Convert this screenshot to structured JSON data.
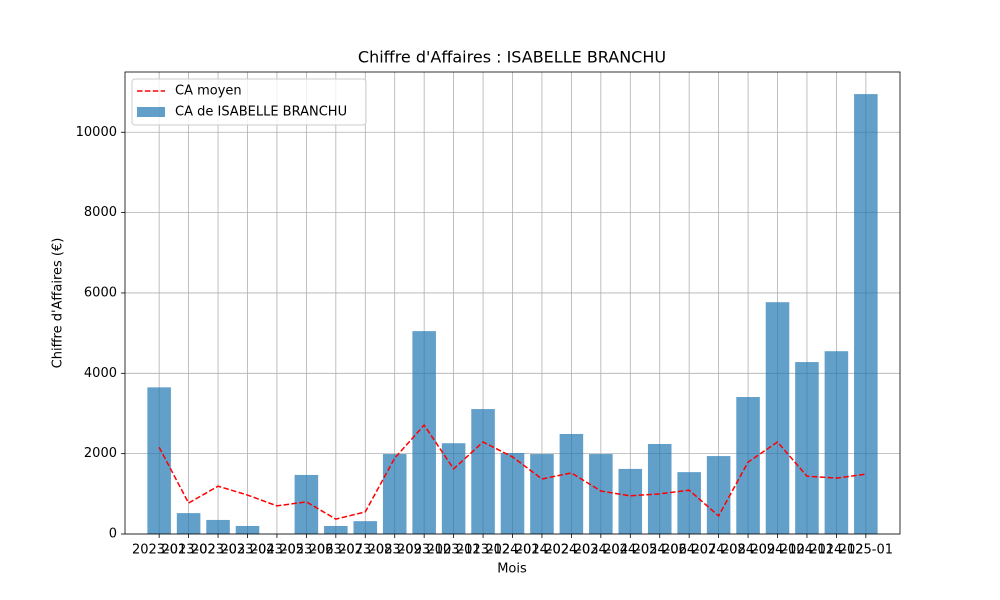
{
  "chart_data": {
    "type": "bar",
    "title": "Chiffre d'Affaires : ISABELLE BRANCHU",
    "xlabel": "Mois",
    "ylabel": "Chiffre d'Affaires (€)",
    "categories": [
      "2023-01",
      "2023-02",
      "2023-03",
      "2023-04",
      "2023-05",
      "2023-06",
      "2023-07",
      "2023-08",
      "2023-09",
      "2023-10",
      "2023-11",
      "2023-12",
      "2024-01",
      "2024-02",
      "2024-03",
      "2024-04",
      "2024-05",
      "2024-06",
      "2024-07",
      "2024-08",
      "2024-09",
      "2024-10",
      "2024-11",
      "2024-12",
      "2025-01"
    ],
    "series": [
      {
        "name": "CA moyen",
        "type": "line",
        "color": "#ff0000",
        "dashed": true,
        "values": [
          2160,
          770,
          1190,
          970,
          700,
          800,
          370,
          550,
          1890,
          2710,
          1620,
          2290,
          1920,
          1370,
          1520,
          1070,
          950,
          1000,
          1090,
          450,
          1790,
          2290,
          1440,
          1390,
          1490
        ]
      },
      {
        "name": "CA de ISABELLE BRANCHU",
        "type": "bar",
        "color": "#1f77b4",
        "opacity": 0.7,
        "values": [
          3650,
          520,
          350,
          200,
          0,
          1470,
          200,
          320,
          1990,
          5050,
          2260,
          3110,
          2015,
          1990,
          2490,
          1990,
          1620,
          2240,
          1540,
          1940,
          3410,
          5770,
          4280,
          4550,
          10950
        ]
      }
    ],
    "ylim": [
      0,
      11500
    ],
    "yticks": [
      0,
      2000,
      4000,
      6000,
      8000,
      10000
    ],
    "grid": true,
    "legend": "upper-left"
  }
}
